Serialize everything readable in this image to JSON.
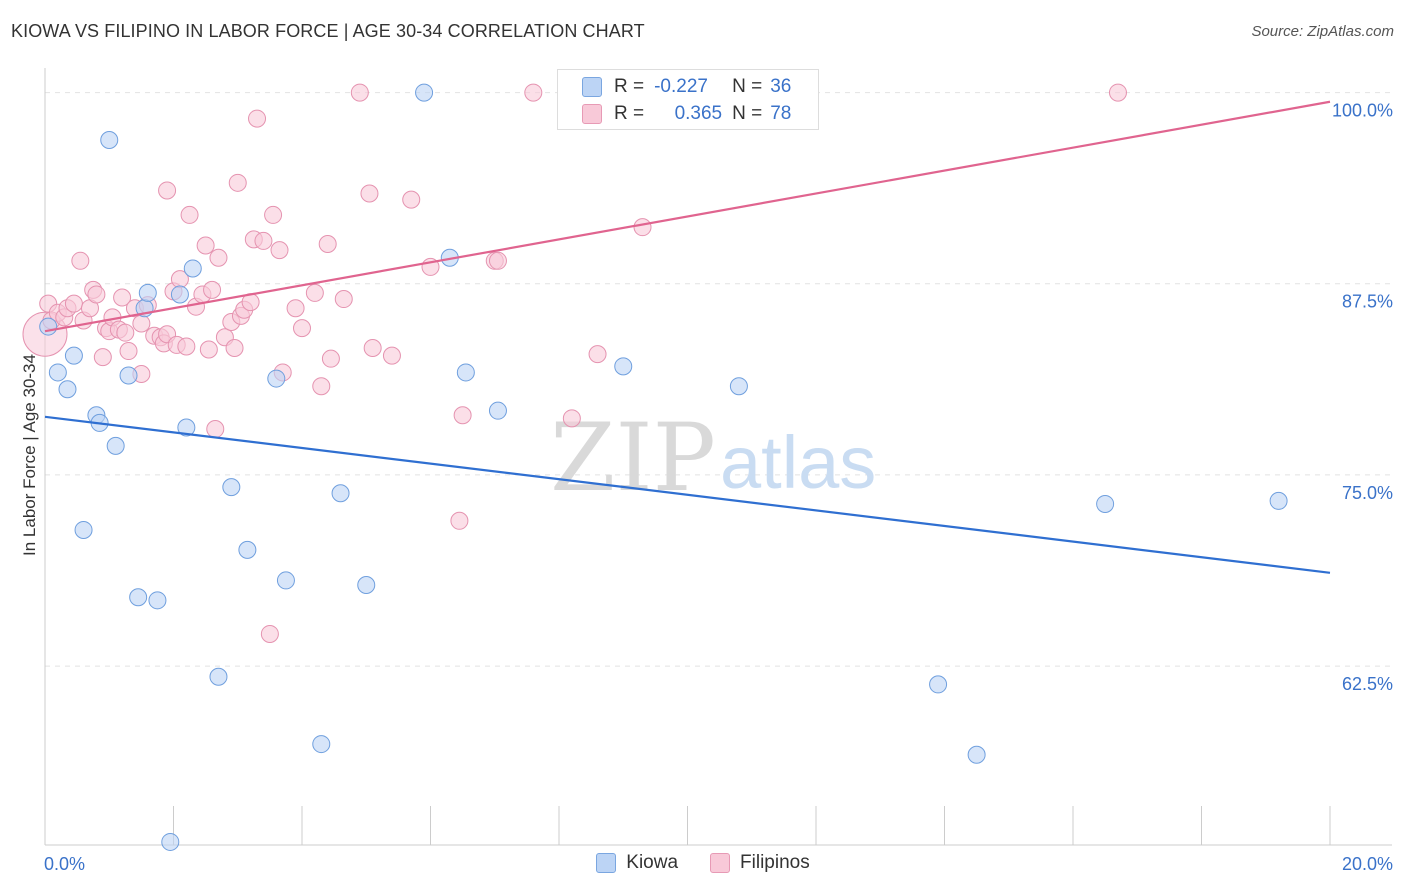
{
  "title": "KIOWA VS FILIPINO IN LABOR FORCE | AGE 30-34 CORRELATION CHART",
  "source": "Source: ZipAtlas.com",
  "watermark": {
    "zip": "ZIP",
    "atlas": "atlas"
  },
  "legend_box": {
    "rows": [
      {
        "r_label": "R =",
        "r_value": "-0.227",
        "n_label": "N =",
        "n_value": "36"
      },
      {
        "r_label": "R =",
        "r_value": "0.365",
        "n_label": "N =",
        "n_value": "78"
      }
    ]
  },
  "bottom_legend": {
    "kiowa": "Kiowa",
    "filipinos": "Filipinos"
  },
  "colors": {
    "kiowa_fill": "#bcd4f5",
    "kiowa_stroke": "#6f9fde",
    "kiowa_line": "#2f6fd1",
    "filipino_fill": "#f8c9d8",
    "filipino_stroke": "#e593b0",
    "filipino_line": "#e0648f",
    "tick_label": "#3a72c9",
    "grid": "#e2e2e2"
  },
  "chart_data": {
    "type": "scatter",
    "title": "KIOWA VS FILIPINO IN LABOR FORCE | AGE 30-34 CORRELATION CHART",
    "xlabel": "",
    "ylabel": "In Labor Force | Age 30-34",
    "xlim": [
      0,
      20
    ],
    "ylim": [
      50.8,
      102
    ],
    "x_tick_labels": {
      "left": "0.0%",
      "right": "20.0%"
    },
    "y_ticks": [
      {
        "value": 100,
        "label": "100.0%"
      },
      {
        "value": 87.5,
        "label": "87.5%"
      },
      {
        "value": 75,
        "label": "75.0%"
      },
      {
        "value": 62.5,
        "label": "62.5%"
      }
    ],
    "series": [
      {
        "name": "Kiowa",
        "r": -0.227,
        "n": 36,
        "trend": {
          "x": [
            0,
            20
          ],
          "y": [
            78.8,
            68.6
          ]
        },
        "points": [
          [
            0.05,
            84.7
          ],
          [
            0.2,
            81.7
          ],
          [
            0.35,
            80.6
          ],
          [
            0.45,
            82.8
          ],
          [
            0.6,
            71.4
          ],
          [
            0.8,
            78.9
          ],
          [
            0.85,
            78.4
          ],
          [
            1.0,
            96.9
          ],
          [
            1.1,
            76.9
          ],
          [
            1.3,
            81.5
          ],
          [
            1.45,
            67.0
          ],
          [
            1.55,
            85.9
          ],
          [
            1.6,
            86.9
          ],
          [
            1.75,
            66.8
          ],
          [
            1.95,
            51.0
          ],
          [
            2.1,
            86.8
          ],
          [
            2.2,
            78.1
          ],
          [
            2.3,
            88.5
          ],
          [
            2.7,
            61.8
          ],
          [
            2.9,
            74.2
          ],
          [
            3.15,
            70.1
          ],
          [
            3.6,
            81.3
          ],
          [
            3.75,
            68.1
          ],
          [
            4.3,
            57.4
          ],
          [
            4.6,
            73.8
          ],
          [
            5.0,
            67.8
          ],
          [
            5.9,
            100.0
          ],
          [
            6.3,
            89.2
          ],
          [
            6.55,
            81.7
          ],
          [
            7.05,
            79.2
          ],
          [
            9.0,
            82.1
          ],
          [
            10.8,
            80.8
          ],
          [
            13.9,
            61.3
          ],
          [
            14.5,
            56.7
          ],
          [
            16.5,
            73.1
          ],
          [
            19.2,
            73.3
          ]
        ]
      },
      {
        "name": "Filipinos",
        "r": 0.365,
        "n": 78,
        "trend": {
          "x": [
            0,
            20
          ],
          "y": [
            84.4,
            99.4
          ]
        },
        "points": [
          [
            0.0,
            84.2
          ],
          [
            0.05,
            86.2
          ],
          [
            0.1,
            85.1
          ],
          [
            0.2,
            85.6
          ],
          [
            0.3,
            85.3
          ],
          [
            0.35,
            85.9
          ],
          [
            0.45,
            86.2
          ],
          [
            0.55,
            89.0
          ],
          [
            0.6,
            85.1
          ],
          [
            0.7,
            85.9
          ],
          [
            0.75,
            87.1
          ],
          [
            0.8,
            86.8
          ],
          [
            0.9,
            82.7
          ],
          [
            0.95,
            84.6
          ],
          [
            1.0,
            84.4
          ],
          [
            1.05,
            85.3
          ],
          [
            1.15,
            84.5
          ],
          [
            1.2,
            86.6
          ],
          [
            1.25,
            84.3
          ],
          [
            1.3,
            83.1
          ],
          [
            1.4,
            85.9
          ],
          [
            1.5,
            84.9
          ],
          [
            1.5,
            81.6
          ],
          [
            1.6,
            86.1
          ],
          [
            1.7,
            84.1
          ],
          [
            1.8,
            84.0
          ],
          [
            1.85,
            83.6
          ],
          [
            1.9,
            84.2
          ],
          [
            1.9,
            93.6
          ],
          [
            2.0,
            87.0
          ],
          [
            2.05,
            83.5
          ],
          [
            2.1,
            87.8
          ],
          [
            2.2,
            83.4
          ],
          [
            2.25,
            92.0
          ],
          [
            2.35,
            86.0
          ],
          [
            2.45,
            86.8
          ],
          [
            2.5,
            90.0
          ],
          [
            2.55,
            83.2
          ],
          [
            2.6,
            87.1
          ],
          [
            2.65,
            78.0
          ],
          [
            2.7,
            89.2
          ],
          [
            2.8,
            84.0
          ],
          [
            2.9,
            85.0
          ],
          [
            2.95,
            83.3
          ],
          [
            3.0,
            94.1
          ],
          [
            3.05,
            85.4
          ],
          [
            3.1,
            85.8
          ],
          [
            3.2,
            86.3
          ],
          [
            3.25,
            90.4
          ],
          [
            3.3,
            98.3
          ],
          [
            3.4,
            90.3
          ],
          [
            3.5,
            64.6
          ],
          [
            3.55,
            92.0
          ],
          [
            3.65,
            89.7
          ],
          [
            3.7,
            81.7
          ],
          [
            3.9,
            85.9
          ],
          [
            4.0,
            84.6
          ],
          [
            4.2,
            86.9
          ],
          [
            4.3,
            80.8
          ],
          [
            4.4,
            90.1
          ],
          [
            4.45,
            82.6
          ],
          [
            4.65,
            86.5
          ],
          [
            4.9,
            100.0
          ],
          [
            5.05,
            93.4
          ],
          [
            5.1,
            83.3
          ],
          [
            5.4,
            82.8
          ],
          [
            5.7,
            93.0
          ],
          [
            6.0,
            88.6
          ],
          [
            6.45,
            72.0
          ],
          [
            6.5,
            78.9
          ],
          [
            7.0,
            89.0
          ],
          [
            7.05,
            89.0
          ],
          [
            7.6,
            100.0
          ],
          [
            8.2,
            78.7
          ],
          [
            8.6,
            82.9
          ],
          [
            9.3,
            91.2
          ],
          [
            11.9,
            100.0
          ],
          [
            16.7,
            100.0
          ]
        ]
      }
    ]
  }
}
